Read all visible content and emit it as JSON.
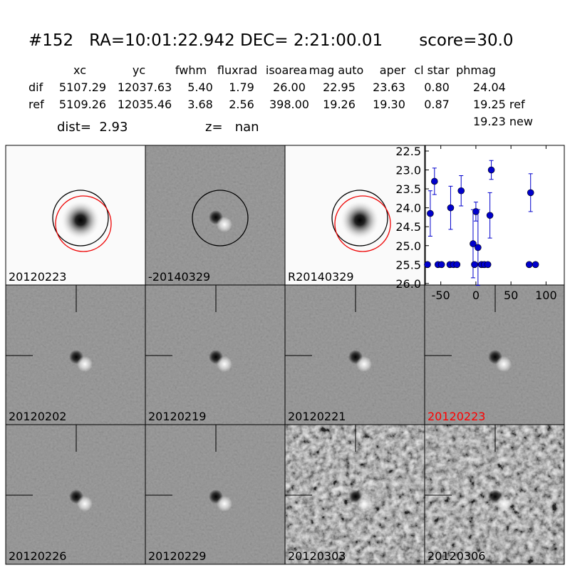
{
  "header": {
    "title": "#152   RA=10:01:22.942 DEC= 2:21:00.01       score=30.0"
  },
  "table": {
    "columns": [
      "xc",
      "yc",
      "fwhm",
      "fluxrad",
      "isoarea",
      "mag auto",
      "aper",
      "cl star",
      "phmag"
    ],
    "rows": [
      {
        "label": "dif",
        "cells": [
          "5107.29",
          "12037.63",
          "5.40",
          "1.79",
          "26.00",
          "22.95",
          "23.63",
          "0.80",
          "24.04"
        ]
      },
      {
        "label": "ref",
        "cells": [
          "5109.26",
          "12035.46",
          "3.68",
          "2.56",
          "398.00",
          "19.26",
          "19.30",
          "0.87",
          "19.25 ref"
        ]
      }
    ],
    "extra": "19.23 new"
  },
  "dist": "dist=  2.93",
  "z": "z=   nan",
  "stamps": [
    {
      "label": "20120223"
    },
    {
      "label": "-20140329"
    },
    {
      "label": "R20140329"
    },
    {
      "label": "20120202"
    },
    {
      "label": "20120219"
    },
    {
      "label": "20120221"
    },
    {
      "label": "20120223",
      "color": "#ff0000"
    },
    {
      "label": "20120226"
    },
    {
      "label": "20120229"
    },
    {
      "label": "20120303"
    },
    {
      "label": "20120306"
    }
  ],
  "chart_data": {
    "type": "scatter",
    "color": "#0000cc",
    "x": [
      -65,
      -59,
      -69,
      -54,
      -49,
      -36,
      -37,
      -32,
      -27,
      -21,
      -4,
      0,
      3,
      -2,
      8,
      12,
      17,
      20,
      22,
      78,
      76,
      85
    ],
    "values": [
      24.15,
      23.3,
      25.5,
      25.5,
      25.5,
      24.0,
      25.5,
      25.5,
      25.5,
      23.55,
      24.95,
      24.1,
      25.05,
      25.5,
      25.5,
      25.5,
      25.5,
      24.2,
      23.0,
      23.6,
      25.5,
      25.5
    ],
    "errors": [
      0.6,
      0.35,
      null,
      null,
      null,
      0.57,
      null,
      null,
      null,
      0.4,
      0.9,
      0.25,
      1.0,
      null,
      null,
      null,
      null,
      0.6,
      0.25,
      0.5,
      null,
      null
    ],
    "xlim": [
      -72,
      126
    ],
    "ylim": [
      26.04,
      22.35
    ],
    "xticks": [
      -50,
      0,
      50,
      100
    ],
    "yticks": [
      22.5,
      {
        "value": 23,
        "label": "23.0"
      },
      23.5,
      {
        "value": 24,
        "label": "24.0"
      },
      24.5,
      {
        "value": 25,
        "label": "25.0"
      },
      25.5,
      {
        "value": 26,
        "label": "26.0"
      }
    ]
  }
}
